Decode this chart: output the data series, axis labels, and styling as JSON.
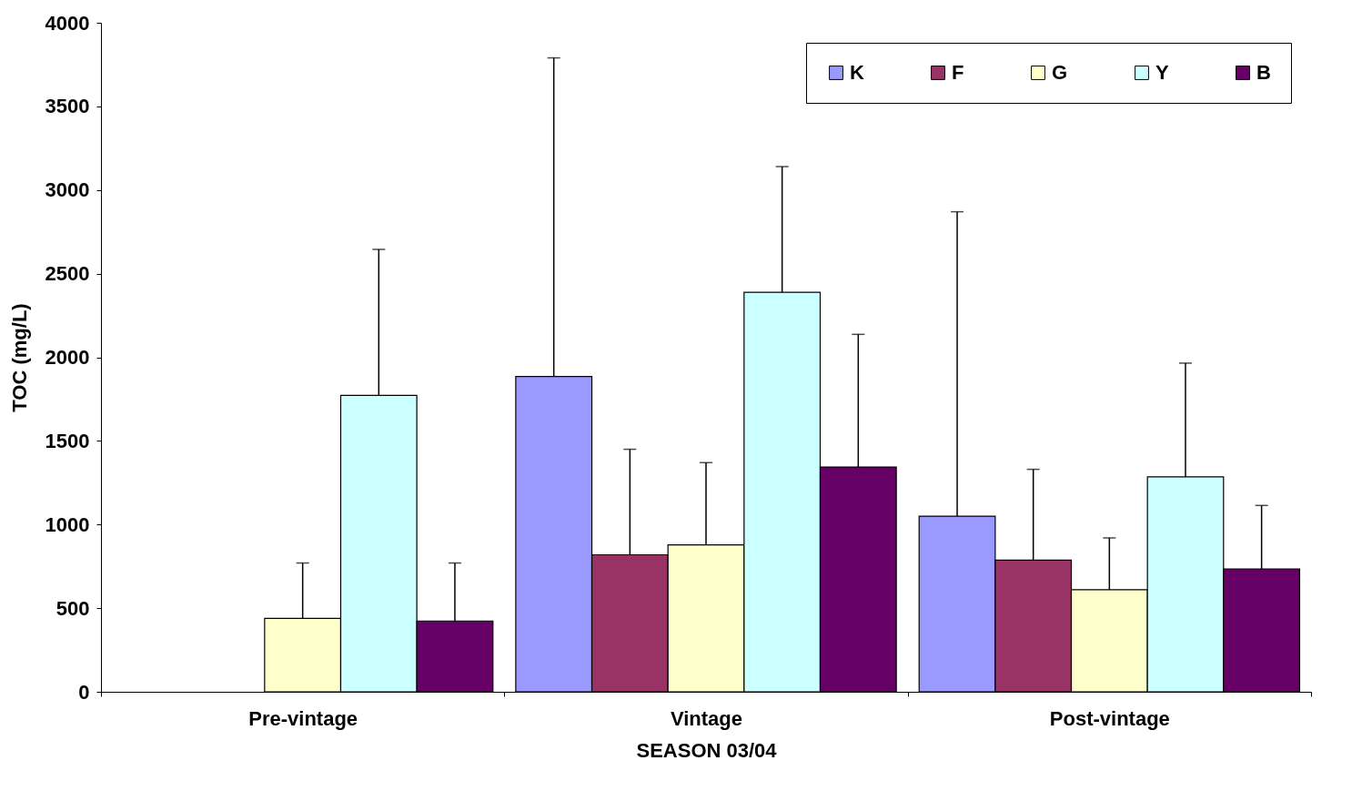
{
  "chart_data": {
    "type": "bar",
    "xlabel": "SEASON 03/04",
    "ylabel": "TOC (mg/L)",
    "categories": [
      "Pre-vintage",
      "Vintage",
      "Post-vintage"
    ],
    "series": [
      {
        "name": "K",
        "color": "#9999ff",
        "values": [
          null,
          1885,
          1050
        ],
        "errors": [
          null,
          [
            1885,
            3790
          ],
          [
            1050,
            2870
          ]
        ]
      },
      {
        "name": "F",
        "color": "#993366",
        "values": [
          null,
          819,
          787
        ],
        "errors": [
          null,
          [
            819,
            1450
          ],
          [
            787,
            1330
          ]
        ]
      },
      {
        "name": "G",
        "color": "#ffffcc",
        "values": [
          439,
          878,
          610
        ],
        "errors": [
          [
            439,
            770
          ],
          [
            878,
            1370
          ],
          [
            610,
            920
          ]
        ]
      },
      {
        "name": "Y",
        "color": "#ccffff",
        "values": [
          1772,
          2388,
          1285
        ],
        "errors": [
          [
            1772,
            2645
          ],
          [
            2388,
            3140
          ],
          [
            1285,
            1965
          ]
        ]
      },
      {
        "name": "B",
        "color": "#660066",
        "values": [
          423,
          1344,
          734
        ],
        "errors": [
          [
            423,
            770
          ],
          [
            1344,
            2137
          ],
          [
            734,
            1114
          ]
        ]
      }
    ],
    "ylim": [
      0,
      4000
    ],
    "yticks": [
      0,
      500,
      1000,
      1500,
      2000,
      2500,
      3000,
      3500,
      4000
    ],
    "grid": false,
    "legend": "top right"
  }
}
